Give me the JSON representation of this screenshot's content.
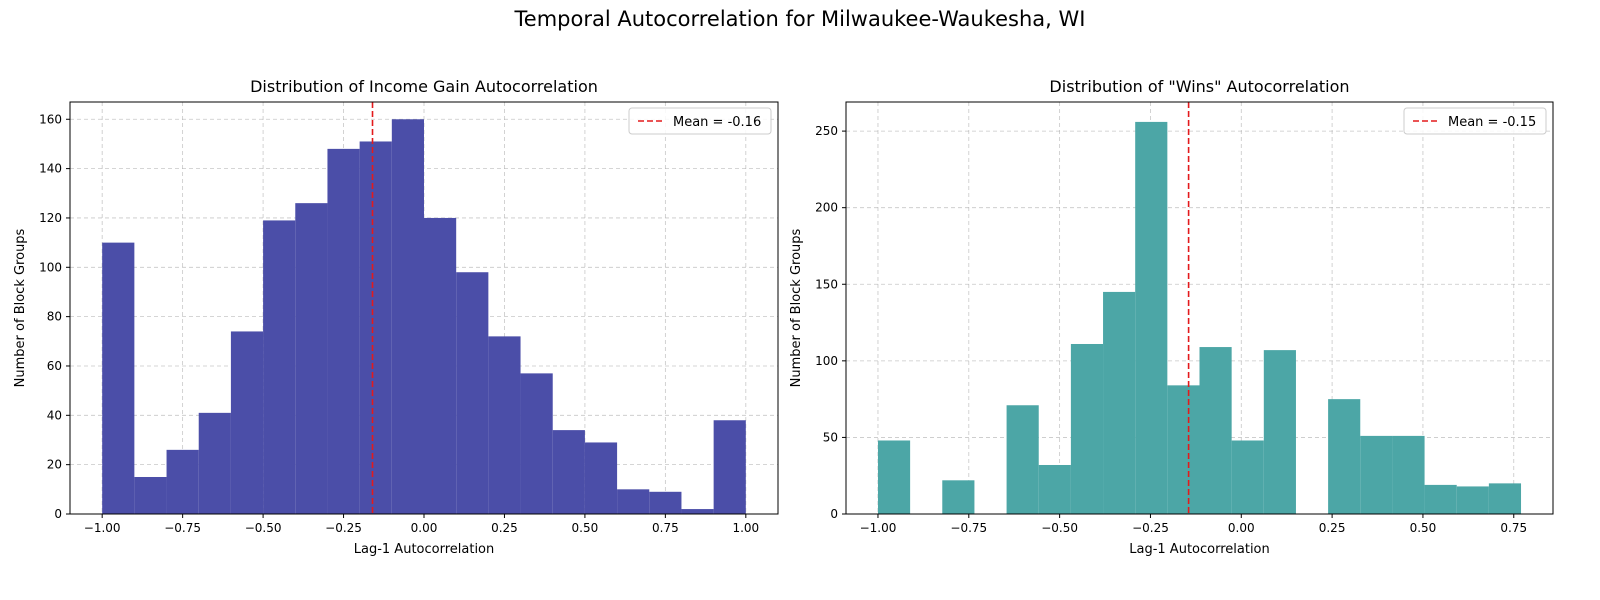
{
  "suptitle": "Temporal Autocorrelation for Milwaukee-Waukesha, WI",
  "chart_data": [
    {
      "type": "bar",
      "title": "Distribution of Income Gain Autocorrelation",
      "xlabel": "Lag-1 Autocorrelation",
      "ylabel": "Number of Block Groups",
      "color": "#4b4ea8",
      "grid": true,
      "legend_position": "top-right",
      "mean_line": {
        "label": "Mean = -0.16",
        "value": -0.16,
        "color": "#e31a1c"
      },
      "xlim": [
        -1.1,
        1.1
      ],
      "ylim": [
        0,
        167
      ],
      "xticks": [
        -1.0,
        -0.75,
        -0.5,
        -0.25,
        0.0,
        0.25,
        0.5,
        0.75,
        1.0
      ],
      "xtick_labels": [
        "−1.00",
        "−0.75",
        "−0.50",
        "−0.25",
        "0.00",
        "0.25",
        "0.50",
        "0.75",
        "1.00"
      ],
      "yticks": [
        0,
        20,
        40,
        60,
        80,
        100,
        120,
        140,
        160
      ],
      "bin_edges": [
        -1.0,
        -0.9,
        -0.8,
        -0.7,
        -0.6,
        -0.5,
        -0.4,
        -0.3,
        -0.2,
        -0.1,
        0.0,
        0.1,
        0.2,
        0.3,
        0.4,
        0.5,
        0.6,
        0.7,
        0.8,
        0.9,
        1.0
      ],
      "values": [
        110,
        15,
        26,
        41,
        74,
        119,
        126,
        148,
        151,
        160,
        120,
        98,
        72,
        57,
        34,
        29,
        10,
        9,
        2,
        38
      ]
    },
    {
      "type": "bar",
      "title": "Distribution of \"Wins\" Autocorrelation",
      "xlabel": "Lag-1 Autocorrelation",
      "ylabel": "Number of Block Groups",
      "color": "#4ca6a6",
      "grid": true,
      "legend_position": "top-right",
      "mean_line": {
        "label": "Mean = -0.15",
        "value": -0.145,
        "color": "#e31a1c"
      },
      "xlim": [
        -1.088,
        0.858
      ],
      "ylim": [
        0,
        269
      ],
      "xticks": [
        -1.0,
        -0.75,
        -0.5,
        -0.25,
        0.0,
        0.25,
        0.5,
        0.75
      ],
      "xtick_labels": [
        "−1.00",
        "−0.75",
        "−0.50",
        "−0.25",
        "0.00",
        "0.25",
        "0.50",
        "0.75"
      ],
      "yticks": [
        0,
        50,
        100,
        150,
        200,
        250
      ],
      "bin_edges": [
        -1.0,
        -0.9115,
        -0.823,
        -0.7345,
        -0.646,
        -0.5575,
        -0.469,
        -0.3805,
        -0.292,
        -0.2035,
        -0.115,
        -0.0265,
        0.062,
        0.1505,
        0.239,
        0.3275,
        0.416,
        0.5045,
        0.593,
        0.6815,
        0.77
      ],
      "values": [
        48,
        0,
        22,
        0,
        71,
        32,
        111,
        145,
        256,
        84,
        109,
        48,
        107,
        0,
        75,
        51,
        51,
        19,
        18,
        20
      ]
    }
  ]
}
